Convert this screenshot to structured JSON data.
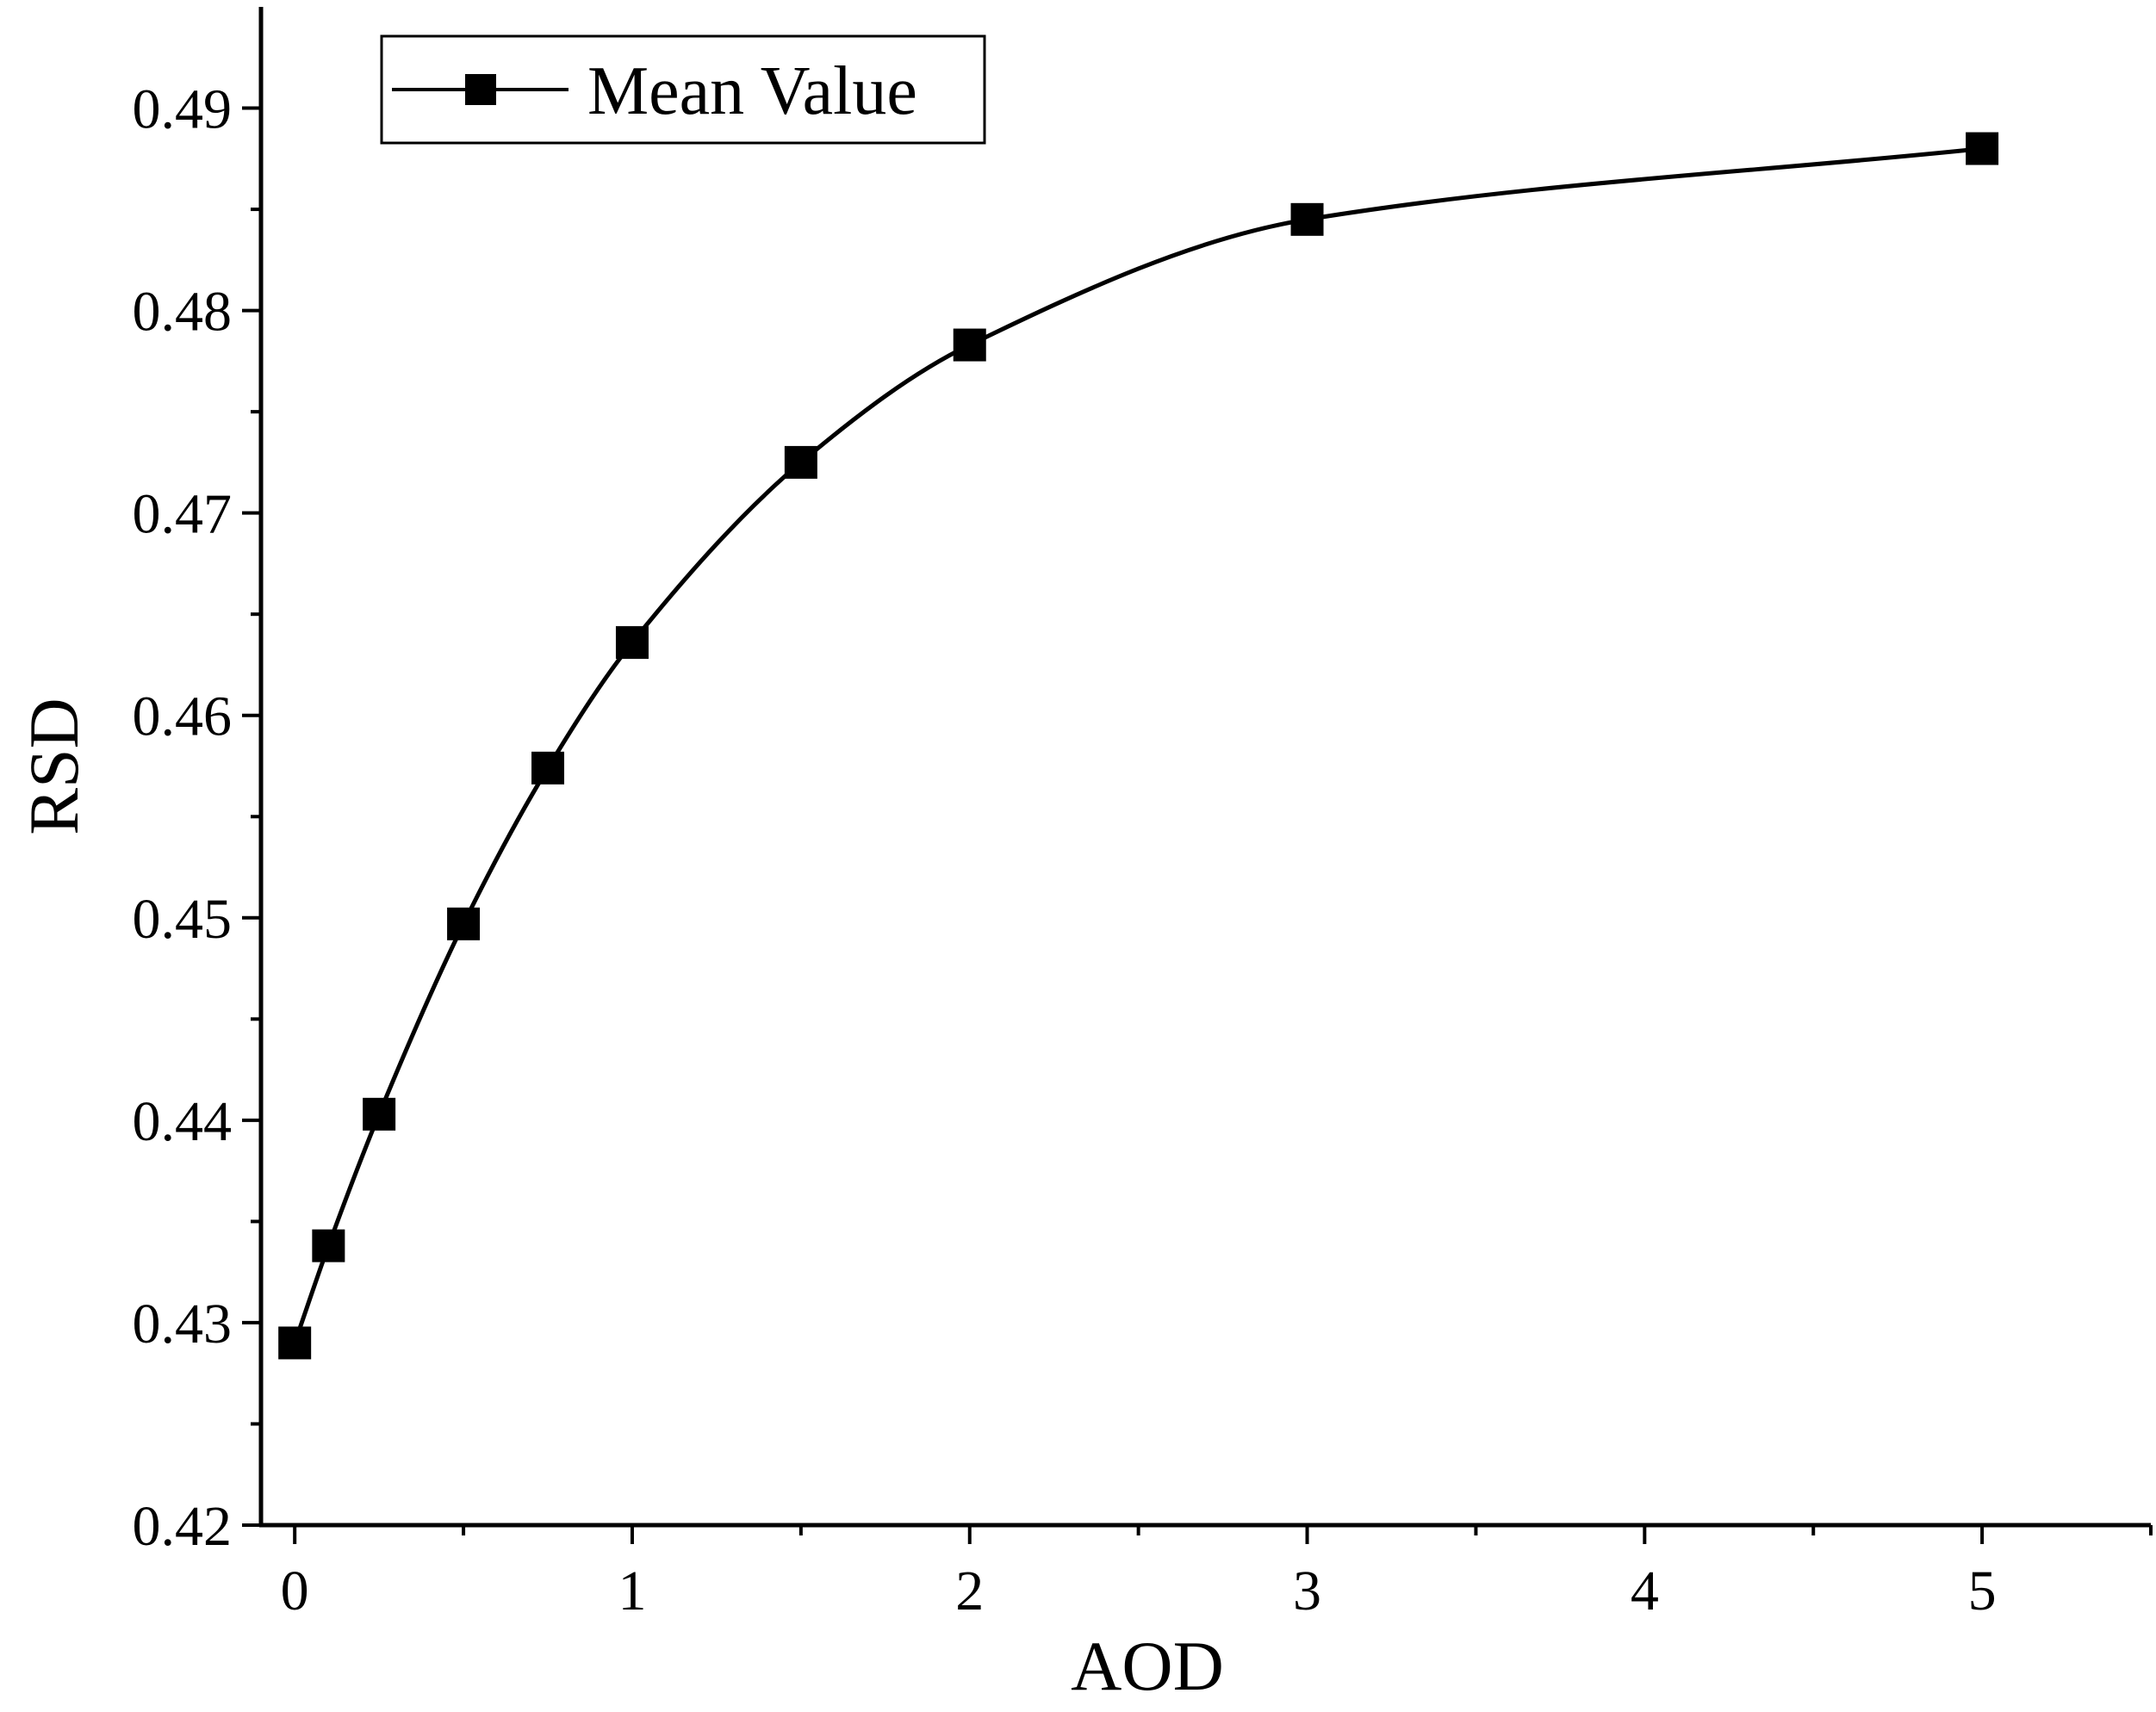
{
  "chart_data": {
    "type": "line",
    "xlabel": "AOD",
    "ylabel": "RSD",
    "xlim": [
      -0.1,
      5.5
    ],
    "ylim": [
      0.42,
      0.495
    ],
    "x_ticks": [
      0,
      1,
      2,
      3,
      4,
      5
    ],
    "x_tick_labels": [
      "0",
      "1",
      "2",
      "3",
      "4",
      "5"
    ],
    "x_minor_ticks": [
      0.5,
      1.5,
      2.5,
      3.5,
      4.5,
      5.5
    ],
    "y_ticks": [
      0.42,
      0.43,
      0.44,
      0.45,
      0.46,
      0.47,
      0.48,
      0.49
    ],
    "y_tick_labels": [
      "0.42",
      "0.43",
      "0.44",
      "0.45",
      "0.46",
      "0.47",
      "0.48",
      "0.49"
    ],
    "y_minor_ticks": [
      0.425,
      0.435,
      0.445,
      0.455,
      0.465,
      0.475,
      0.485
    ],
    "grid": false,
    "legend_position": "top-left",
    "line_color": "#000000",
    "marker": "square",
    "series": [
      {
        "name": "Mean Value",
        "x": [
          0,
          0.1,
          0.25,
          0.5,
          0.75,
          1,
          1.5,
          2,
          3,
          5
        ],
        "y": [
          0.429,
          0.4338,
          0.4403,
          0.4497,
          0.4574,
          0.4636,
          0.4725,
          0.4783,
          0.4845,
          0.488
        ]
      }
    ]
  }
}
